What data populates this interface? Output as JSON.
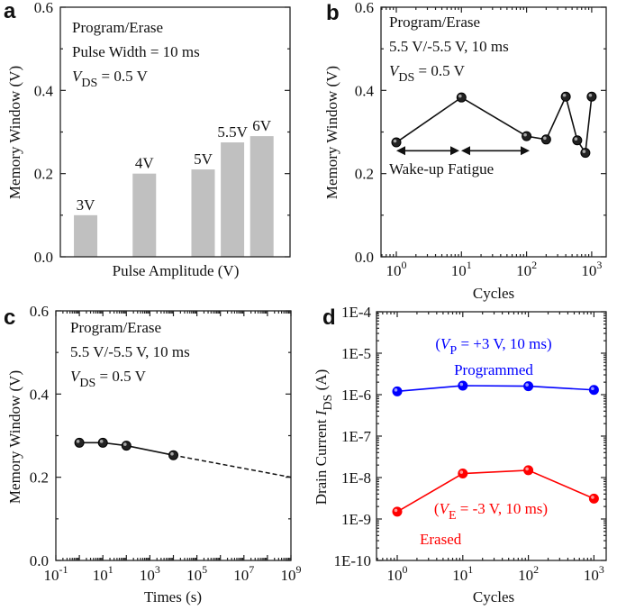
{
  "panel_letters": [
    "a",
    "b",
    "c",
    "d"
  ],
  "chart_data": [
    {
      "type": "bar",
      "panel": "a",
      "xlabel": "Pulse Amplitude (V)",
      "ylabel": "Memory Window (V)",
      "ylim": [
        0,
        0.6
      ],
      "yticks": [
        "0.0",
        "0.2",
        "0.4",
        "0.6"
      ],
      "categories": [
        "3V",
        "4V",
        "5V",
        "5.5V",
        "6V"
      ],
      "x": [
        3,
        4,
        5,
        5.5,
        6
      ],
      "values": [
        0.1,
        0.2,
        0.21,
        0.275,
        0.29
      ],
      "color": "#c0c0c0",
      "annotations": {
        "line1": "Program/Erase",
        "line2": "Pulse Width = 10 ms",
        "vds": {
          "v": "V",
          "sub": "DS",
          "rest": " = 0.5 V"
        }
      }
    },
    {
      "type": "line",
      "panel": "b",
      "xlabel": "Cycles",
      "ylabel": "Memory Window (V)",
      "xscale": "log",
      "xlim": [
        0.6,
        1650
      ],
      "ylim": [
        0,
        0.6
      ],
      "yticks": [
        "0.0",
        "0.2",
        "0.4",
        "0.6"
      ],
      "xticks": [
        {
          "base": "10",
          "exp": "0"
        },
        {
          "base": "10",
          "exp": "1"
        },
        {
          "base": "10",
          "exp": "2"
        },
        {
          "base": "10",
          "exp": "3"
        }
      ],
      "x": [
        1,
        10,
        100,
        200,
        400,
        600,
        800,
        1000
      ],
      "values": [
        0.275,
        0.383,
        0.29,
        0.282,
        0.385,
        0.28,
        0.25,
        0.385
      ],
      "annotations": {
        "line1": "Program/Erase",
        "line2": "5.5 V/-5.5 V, 10 ms",
        "vds": {
          "v": "V",
          "sub": "DS",
          "rest": " = 0.5 V"
        },
        "arrow_label": "Wake-up Fatigue"
      }
    },
    {
      "type": "line",
      "panel": "c",
      "xlabel": "Times (s)",
      "ylabel": "Memory Window (V)",
      "xscale": "log",
      "xlim": [
        0.1,
        1000000000.0
      ],
      "ylim": [
        0,
        0.6
      ],
      "yticks": [
        "0.0",
        "0.2",
        "0.4",
        "0.6"
      ],
      "xticks": [
        {
          "base": "10",
          "exp": "-1"
        },
        {
          "base": "10",
          "exp": "1"
        },
        {
          "base": "10",
          "exp": "3"
        },
        {
          "base": "10",
          "exp": "5"
        },
        {
          "base": "10",
          "exp": "7"
        },
        {
          "base": "10",
          "exp": "9"
        }
      ],
      "x": [
        1,
        10,
        100,
        10000
      ],
      "values": [
        0.283,
        0.283,
        0.276,
        0.253
      ],
      "extrapolation": {
        "x": [
          10000,
          1000000000.0
        ],
        "values": [
          0.253,
          0.2
        ],
        "style": "dashed"
      },
      "annotations": {
        "line1": "Program/Erase",
        "line2": "5.5 V/-5.5 V, 10 ms",
        "vds": {
          "v": "V",
          "sub": "DS",
          "rest": " = 0.5 V"
        }
      }
    },
    {
      "type": "line",
      "panel": "d",
      "xlabel": "Cycles",
      "ylabel": {
        "text": "Drain Current ",
        "v": "I",
        "sub": "DS",
        "rest": " (A)"
      },
      "xscale": "log",
      "yscale": "log",
      "xlim": [
        0.5,
        1600
      ],
      "ylim": [
        1e-10,
        0.0001
      ],
      "yticks": [
        "1E-10",
        "1E-9",
        "1E-8",
        "1E-7",
        "1E-6",
        "1E-5",
        "1E-4"
      ],
      "xticks": [
        {
          "base": "10",
          "exp": "0"
        },
        {
          "base": "10",
          "exp": "1"
        },
        {
          "base": "10",
          "exp": "2"
        },
        {
          "base": "10",
          "exp": "3"
        }
      ],
      "x": [
        1,
        10,
        100,
        1000
      ],
      "series": [
        {
          "name": "Programmed",
          "color": "#0000ff",
          "values": [
            1.2e-06,
            1.65e-06,
            1.6e-06,
            1.3e-06
          ],
          "condition": {
            "pre": "(",
            "v": "V",
            "sub": "P",
            "rest": " = +3 V, 10 ms)"
          }
        },
        {
          "name": "Erased",
          "color": "#ff0000",
          "values": [
            1.5e-09,
            1.25e-08,
            1.5e-08,
            3.1e-09
          ],
          "condition": {
            "pre": "(",
            "v": "V",
            "sub": "E",
            "rest": " = -3 V, 10 ms)"
          }
        }
      ]
    }
  ]
}
